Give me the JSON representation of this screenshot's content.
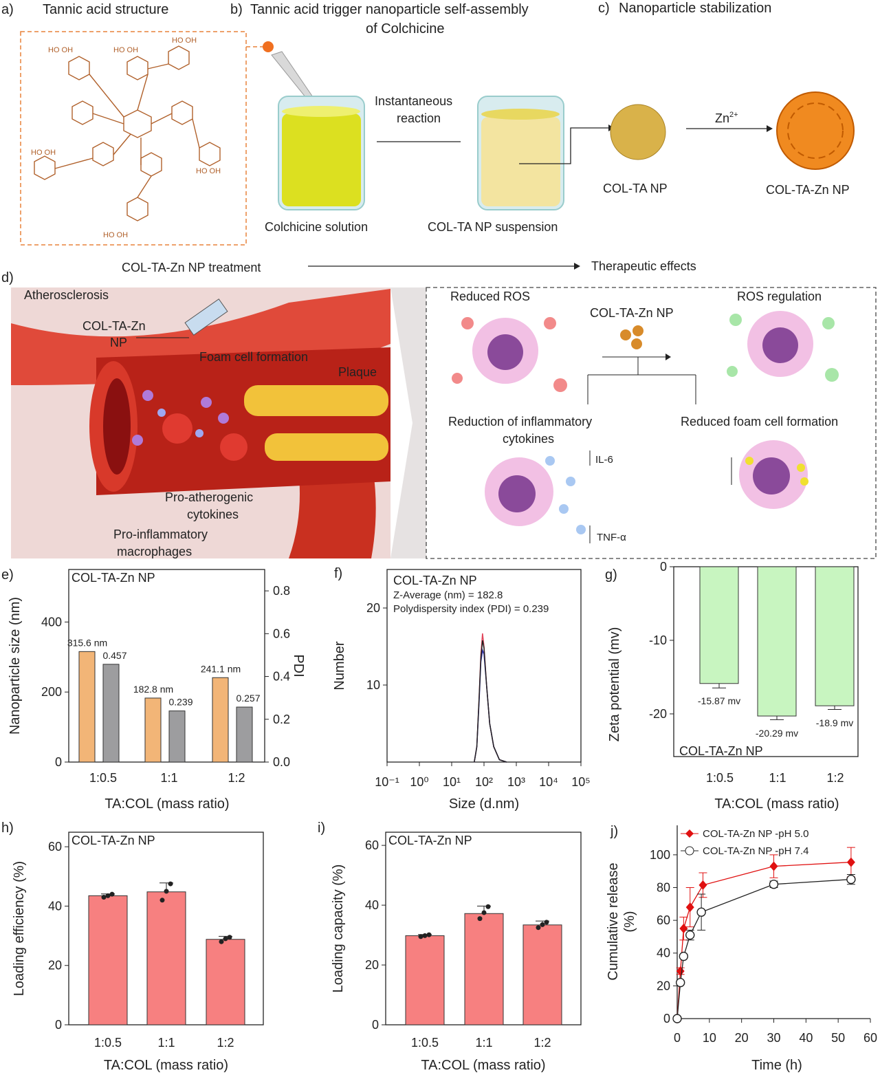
{
  "panels": {
    "a": {
      "label": "a)",
      "title": "Tannic acid structure",
      "oh": "HO OH"
    },
    "b": {
      "label": "b)",
      "title_line1": "Tannic acid trigger nanoparticle self-assembly",
      "title_line2": "of Colchicine",
      "step1": "Colchicine solution",
      "step2": "COL-TA NP suspension",
      "arrow_line1": "Instantaneous",
      "arrow_line2": "reaction"
    },
    "c": {
      "label": "c)",
      "title": "Nanoparticle stabilization",
      "np1": "COL-TA NP",
      "np2": "COL-TA-Zn NP",
      "zn": "Zn",
      "zn_sup": "2+"
    },
    "d": {
      "label": "d)",
      "treatment": "COL-TA-Zn NP treatment",
      "effects": "Therapeutic effects",
      "athero": "Atherosclerosis",
      "np_line1": "COL-TA-Zn",
      "np_line2": "NP",
      "foam": "Foam cell formation",
      "plaque": "Plaque",
      "proath_1": "Pro-atherogenic",
      "proath_2": "cytokines",
      "proinf_1": "Pro-inflammatory",
      "proinf_2": "macrophages",
      "reduced_ros": "Reduced ROS",
      "ros_reg": "ROS regulation",
      "np": "COL-TA-Zn NP",
      "red_inf_1": "Reduction of inflammatory",
      "red_inf_2": "cytokines",
      "red_foam": "Reduced foam cell formation",
      "il6": "IL-6",
      "tnf": "TNF-α"
    }
  },
  "chart_data": [
    {
      "panel": "e)",
      "type": "bar",
      "title": "COL-TA-Zn NP",
      "categories": [
        "1:0.5",
        "1:1",
        "1:2"
      ],
      "xlabel": "TA:COL (mass ratio)",
      "ylabel": "Nanoparticle size (nm)",
      "y2label": "PDI",
      "ylim": [
        0,
        550
      ],
      "y2lim": [
        0,
        0.9
      ],
      "yticks": [
        "0",
        "200",
        "400"
      ],
      "y2ticks": [
        "0.0",
        "0.2",
        "0.4",
        "0.6",
        "0.8"
      ],
      "series": [
        {
          "axis": "left",
          "values": [
            315.6,
            182.8,
            241.1
          ],
          "labels": [
            "315.6 nm",
            "182.8 nm",
            "241.1 nm"
          ],
          "color": "#f2b577"
        },
        {
          "axis": "right",
          "values": [
            0.457,
            0.239,
            0.257
          ],
          "labels": [
            "0.457",
            "0.239",
            "0.257"
          ],
          "color": "#9d9d9f"
        }
      ]
    },
    {
      "panel": "f)",
      "type": "line",
      "title": "COL-TA-Zn NP",
      "annot1": "Z-Average (nm) = 182.8",
      "annot2": "Polydispersity index (PDI) = 0.239",
      "xlabel": "Size  (d.nm)",
      "ylabel": "Number",
      "xscale": "log",
      "xlim": [
        0.1,
        100000
      ],
      "ylim": [
        0,
        25
      ],
      "yticks": [
        "10",
        "20"
      ],
      "xticks": [
        "10⁻¹",
        "10⁰",
        "10¹",
        "10²",
        "10³",
        "10⁴",
        "10⁵"
      ],
      "series": [
        {
          "color": "#e0455a",
          "x": [
            50,
            60,
            70,
            80,
            90,
            100,
            120,
            150,
            200,
            300,
            500
          ],
          "y": [
            0,
            2,
            8,
            14,
            16.7,
            15,
            10,
            5,
            2,
            0.3,
            0
          ]
        },
        {
          "color": "#3333aa",
          "x": [
            50,
            60,
            70,
            80,
            90,
            100,
            120,
            150,
            200,
            300,
            500
          ],
          "y": [
            0,
            2,
            7.5,
            13,
            14.5,
            14,
            10,
            5,
            2,
            0.3,
            0
          ]
        },
        {
          "color": "#222222",
          "x": [
            50,
            60,
            70,
            80,
            90,
            100,
            120,
            150,
            200,
            300,
            500
          ],
          "y": [
            0,
            2,
            8,
            13.5,
            15.8,
            14.8,
            10,
            5,
            2,
            0.3,
            0
          ]
        }
      ]
    },
    {
      "panel": "g)",
      "type": "bar",
      "title": "COL-TA-Zn NP",
      "categories": [
        "1:0.5",
        "1:1",
        "1:2"
      ],
      "xlabel": "TA:COL (mass ratio)",
      "ylabel": "Zeta potential (mv)",
      "ylim": [
        -25.8,
        0
      ],
      "yticks": [
        "0",
        "-10",
        "-20"
      ],
      "values": [
        -15.87,
        -20.29,
        -18.9
      ],
      "errors": [
        0.6,
        0.5,
        0.5
      ],
      "labels": [
        "-15.87 mv",
        "-20.29 mv",
        "-18.9 mv"
      ],
      "color": "#c8f5c0"
    },
    {
      "panel": "h)",
      "type": "bar",
      "title": "COL-TA-Zn NP",
      "categories": [
        "1:0.5",
        "1:1",
        "1:2"
      ],
      "xlabel": "TA:COL (mass ratio)",
      "ylabel": "Loading efficiency (%)",
      "ylim": [
        0,
        65
      ],
      "yticks": [
        "0",
        "20",
        "40",
        "60"
      ],
      "values": [
        43.5,
        44.8,
        28.8
      ],
      "errors": [
        0.6,
        3,
        1
      ],
      "points": [
        [
          43,
          43.5,
          44
        ],
        [
          42,
          45,
          47.5
        ],
        [
          28,
          29,
          29.5
        ]
      ],
      "color": "#f78080"
    },
    {
      "panel": "i)",
      "type": "bar",
      "title": "COL-TA-Zn NP",
      "categories": [
        "1:0.5",
        "1:1",
        "1:2"
      ],
      "xlabel": "TA:COL (mass ratio)",
      "ylabel": "Loading capacity (%)",
      "ylim": [
        0,
        60
      ],
      "yticks": [
        "0",
        "20",
        "40",
        "60"
      ],
      "values": [
        29.8,
        37.2,
        33.4
      ],
      "errors": [
        0.4,
        2.5,
        1.3
      ],
      "points": [
        [
          29.5,
          29.8,
          30.1
        ],
        [
          35.5,
          37.5,
          39.5
        ],
        [
          32.5,
          33.5,
          34.3
        ]
      ],
      "color": "#f78080"
    },
    {
      "panel": "j)",
      "type": "line",
      "xlabel": "Time  (h)",
      "ylabel_1": "Cumulative release",
      "ylabel_2": "(%)",
      "xlim": [
        0,
        60
      ],
      "ylim": [
        0,
        118
      ],
      "xticks": [
        "0",
        "10",
        "20",
        "30",
        "40",
        "50",
        "60"
      ],
      "yticks": [
        "0",
        "20",
        "40",
        "60",
        "80",
        "100"
      ],
      "series": [
        {
          "name": "COL-TA-Zn NP -pH 5.0",
          "color": "#e01010",
          "marker": "diamond",
          "x": [
            0,
            1,
            2,
            4,
            8,
            30,
            54
          ],
          "y": [
            0,
            29,
            55,
            68,
            81.5,
            93,
            95.5
          ],
          "err": [
            0,
            2,
            7,
            12,
            7.5,
            7,
            9
          ]
        },
        {
          "name": "COL-TA-Zn NP -pH 7.4",
          "color": "#222222",
          "marker": "open-circle",
          "x": [
            0,
            1,
            2,
            4,
            7.5,
            30,
            54
          ],
          "y": [
            0,
            22,
            38,
            51,
            65,
            82,
            85
          ],
          "err": [
            0,
            1,
            1,
            3,
            11,
            2,
            3
          ]
        }
      ]
    }
  ]
}
